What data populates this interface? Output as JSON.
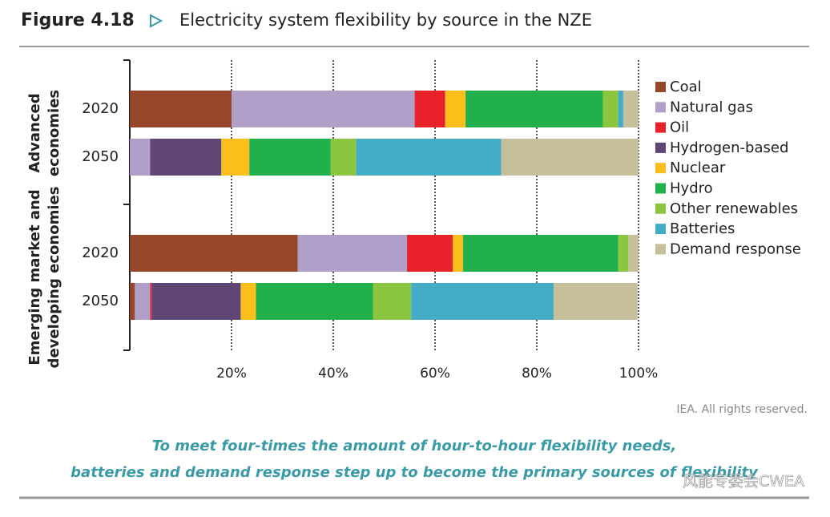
{
  "chart_data": {
    "type": "stacked_barh",
    "figure_label": "Figure 4.18",
    "title": "Electricity system flexibility by source in the NZE",
    "groups": [
      {
        "label_lines": [
          "Advanced",
          "economies"
        ]
      },
      {
        "label_lines": [
          "Emerging market and",
          "developing economies"
        ]
      }
    ],
    "categories": [
      "2020",
      "2050",
      "2020",
      "2050"
    ],
    "series": [
      {
        "name": "Coal",
        "color": "#96472a",
        "values": [
          20,
          0,
          33,
          1
        ]
      },
      {
        "name": "Natural gas",
        "color": "#b09fc9",
        "values": [
          36,
          4,
          21.5,
          3
        ]
      },
      {
        "name": "Oil",
        "color": "#e8212a",
        "values": [
          6,
          0,
          9,
          0.3
        ]
      },
      {
        "name": "Hydrogen-based",
        "color": "#5f4677",
        "values": [
          0,
          14,
          0,
          17.5
        ]
      },
      {
        "name": "Nuclear",
        "color": "#fbbf1c",
        "values": [
          4,
          5.5,
          2,
          3
        ]
      },
      {
        "name": "Hydro",
        "color": "#22b04c",
        "values": [
          27,
          16,
          30.5,
          23
        ]
      },
      {
        "name": "Other renewables",
        "color": "#8cc63f",
        "values": [
          3,
          5,
          2,
          7.5
        ]
      },
      {
        "name": "Batteries",
        "color": "#44acc6",
        "values": [
          1,
          28.5,
          0,
          28
        ]
      },
      {
        "name": "Demand response",
        "color": "#c5bf9a",
        "values": [
          3,
          27,
          2,
          16.5
        ]
      }
    ],
    "xlim": [
      0,
      100
    ],
    "xticks": [
      {
        "value": 20,
        "label": "20%"
      },
      {
        "value": 40,
        "label": "40%"
      },
      {
        "value": 60,
        "label": "60%"
      },
      {
        "value": 80,
        "label": "80%"
      },
      {
        "value": 100,
        "label": "100%"
      }
    ],
    "grid": true,
    "legend_position": "right",
    "source": "IEA. All rights reserved.",
    "caption_lines": [
      "To meet four-times the amount of hour-to-hour flexibility needs,",
      "batteries and demand response step up to become the primary sources of flexibility"
    ],
    "watermark": "风能专委会CWEA"
  }
}
